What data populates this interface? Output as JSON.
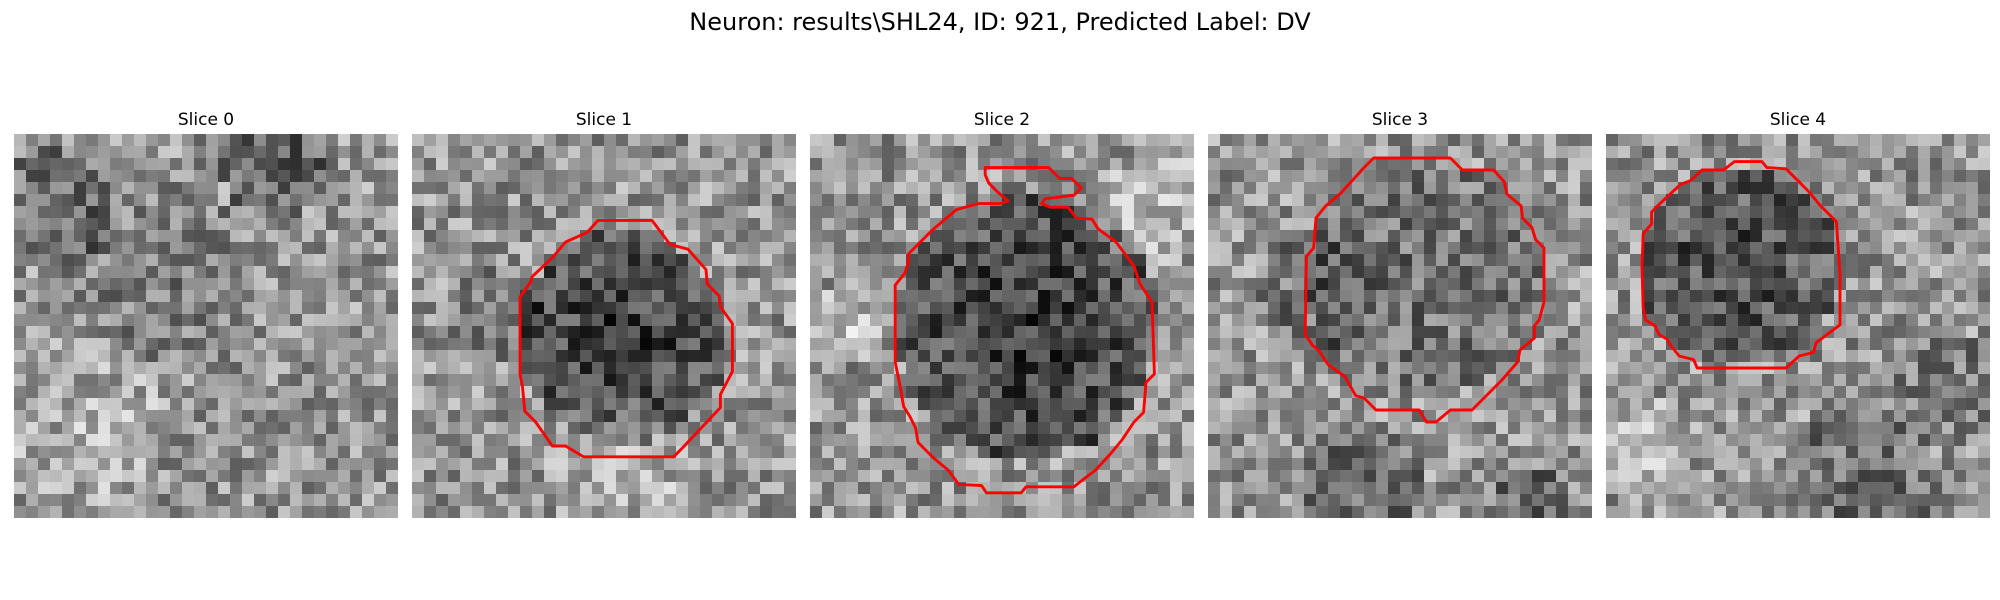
{
  "figure": {
    "title": "Neuron: results\\SHL24, ID: 921, Predicted Label: DV"
  },
  "colors": {
    "background": "#ffffff",
    "contour": "#ff0000",
    "image_dark": "#000000",
    "image_light": "#ffffff"
  },
  "slices": [
    {
      "title": "Slice 0",
      "has_contour": false
    },
    {
      "title": "Slice 1",
      "has_contour": true
    },
    {
      "title": "Slice 2",
      "has_contour": true
    },
    {
      "title": "Slice 3",
      "has_contour": true
    },
    {
      "title": "Slice 4",
      "has_contour": true
    }
  ]
}
